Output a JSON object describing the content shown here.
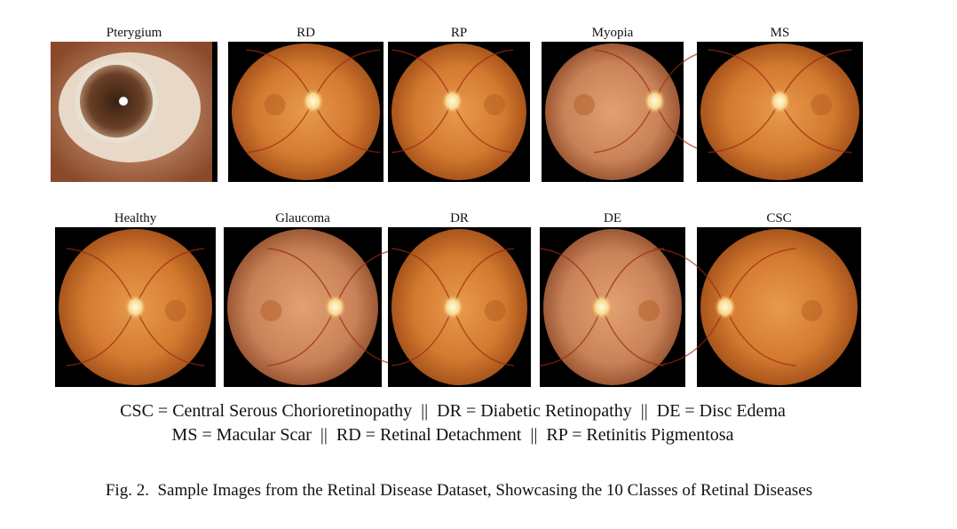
{
  "figure": {
    "panels": [
      {
        "label": "Pterygium"
      },
      {
        "label": "RD"
      },
      {
        "label": "RP"
      },
      {
        "label": "Myopia"
      },
      {
        "label": "MS"
      },
      {
        "label": "Healthy"
      },
      {
        "label": "Glaucoma"
      },
      {
        "label": "DR"
      },
      {
        "label": "DE"
      },
      {
        "label": "CSC"
      }
    ],
    "legend": [
      "CSC = Central Serous Chorioretinopathy  ||  DR = Diabetic Retinopathy  ||  DE = Disc Edema",
      "MS = Macular Scar  ||  RD = Retinal Detachment  ||  RP = Retinitis Pigmentosa"
    ],
    "caption": "Fig. 2.  Sample Images from the Retinal Disease Dataset, Showcasing the 10 Classes of Retinal Diseases"
  }
}
